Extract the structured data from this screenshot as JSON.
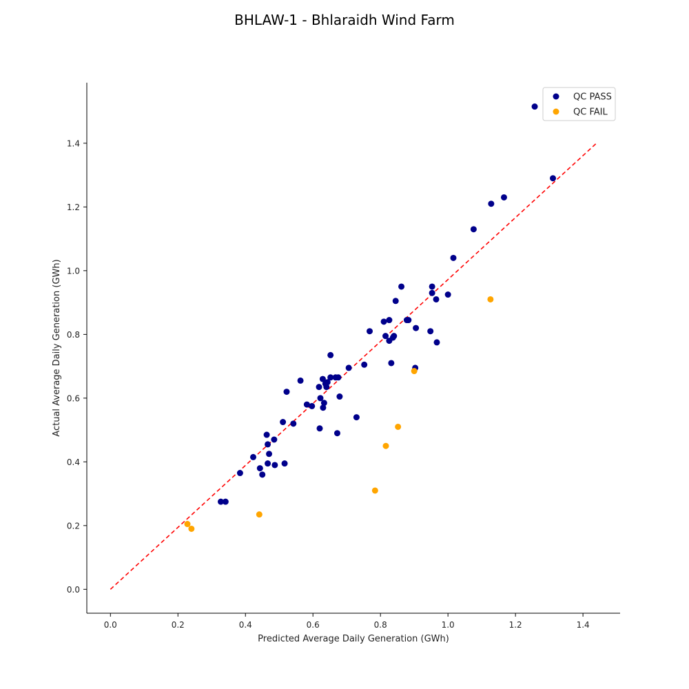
{
  "chart_data": {
    "type": "scatter",
    "title": "BHLAW-1 - Bhlaraidh Wind Farm",
    "xlabel": "Predicted Average Daily Generation (GWh)",
    "ylabel": "Actual Average Daily Generation (GWh)",
    "xlim": [
      -0.07,
      1.51
    ],
    "ylim": [
      -0.075,
      1.59
    ],
    "xticks": [
      0.0,
      0.2,
      0.4,
      0.6,
      0.8,
      1.0,
      1.2,
      1.4
    ],
    "yticks": [
      0.0,
      0.2,
      0.4,
      0.6,
      0.8,
      1.0,
      1.2,
      1.4
    ],
    "xtick_labels": [
      "0.0",
      "0.2",
      "0.4",
      "0.6",
      "0.8",
      "1.0",
      "1.2",
      "1.4"
    ],
    "ytick_labels": [
      "0.0",
      "0.2",
      "0.4",
      "0.6",
      "0.8",
      "1.0",
      "1.2",
      "1.4"
    ],
    "grid": false,
    "legend_position": "top-right",
    "reference_line": {
      "x": [
        0.0,
        1.44
      ],
      "y": [
        0.0,
        1.4
      ],
      "color": "#ff0000",
      "style": "dashed"
    },
    "series": [
      {
        "name": "QC PASS",
        "color": "#00008b",
        "points": [
          [
            1.257,
            1.515
          ],
          [
            1.311,
            1.29
          ],
          [
            1.166,
            1.23
          ],
          [
            1.128,
            1.21
          ],
          [
            1.076,
            1.13
          ],
          [
            1.016,
            1.04
          ],
          [
            0.862,
            0.95
          ],
          [
            0.953,
            0.95
          ],
          [
            0.953,
            0.93
          ],
          [
            1.0,
            0.925
          ],
          [
            0.965,
            0.91
          ],
          [
            0.845,
            0.905
          ],
          [
            0.826,
            0.845
          ],
          [
            0.878,
            0.845
          ],
          [
            0.883,
            0.845
          ],
          [
            0.81,
            0.84
          ],
          [
            0.905,
            0.82
          ],
          [
            0.768,
            0.81
          ],
          [
            0.948,
            0.81
          ],
          [
            0.815,
            0.795
          ],
          [
            0.84,
            0.795
          ],
          [
            0.837,
            0.79
          ],
          [
            0.826,
            0.78
          ],
          [
            0.967,
            0.775
          ],
          [
            0.652,
            0.735
          ],
          [
            0.832,
            0.71
          ],
          [
            0.752,
            0.705
          ],
          [
            0.706,
            0.695
          ],
          [
            0.903,
            0.695
          ],
          [
            0.667,
            0.665
          ],
          [
            0.652,
            0.665
          ],
          [
            0.675,
            0.665
          ],
          [
            0.629,
            0.66
          ],
          [
            0.563,
            0.655
          ],
          [
            0.643,
            0.65
          ],
          [
            0.637,
            0.645
          ],
          [
            0.618,
            0.635
          ],
          [
            0.64,
            0.635
          ],
          [
            0.522,
            0.62
          ],
          [
            0.679,
            0.605
          ],
          [
            0.622,
            0.6
          ],
          [
            0.582,
            0.58
          ],
          [
            0.633,
            0.585
          ],
          [
            0.597,
            0.575
          ],
          [
            0.63,
            0.57
          ],
          [
            0.729,
            0.54
          ],
          [
            0.511,
            0.525
          ],
          [
            0.542,
            0.52
          ],
          [
            0.62,
            0.505
          ],
          [
            0.672,
            0.49
          ],
          [
            0.463,
            0.485
          ],
          [
            0.485,
            0.47
          ],
          [
            0.466,
            0.455
          ],
          [
            0.47,
            0.425
          ],
          [
            0.423,
            0.415
          ],
          [
            0.466,
            0.395
          ],
          [
            0.487,
            0.39
          ],
          [
            0.516,
            0.395
          ],
          [
            0.443,
            0.38
          ],
          [
            0.384,
            0.365
          ],
          [
            0.45,
            0.36
          ],
          [
            0.327,
            0.275
          ],
          [
            0.341,
            0.275
          ]
        ]
      },
      {
        "name": "QC FAIL",
        "color": "#ffa500",
        "points": [
          [
            1.126,
            0.91
          ],
          [
            0.9,
            0.685
          ],
          [
            0.852,
            0.51
          ],
          [
            0.816,
            0.45
          ],
          [
            0.784,
            0.31
          ],
          [
            0.441,
            0.235
          ],
          [
            0.228,
            0.205
          ],
          [
            0.24,
            0.19
          ]
        ]
      }
    ]
  }
}
